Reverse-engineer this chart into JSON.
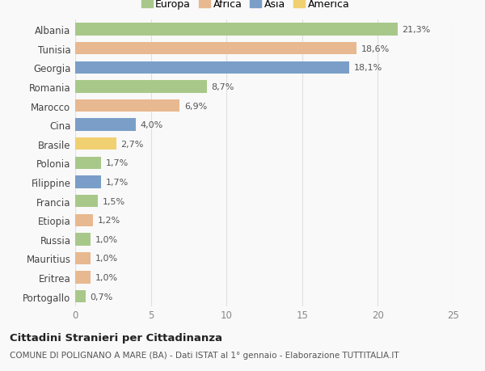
{
  "countries": [
    "Albania",
    "Tunisia",
    "Georgia",
    "Romania",
    "Marocco",
    "Cina",
    "Brasile",
    "Polonia",
    "Filippine",
    "Francia",
    "Etiopia",
    "Russia",
    "Mauritius",
    "Eritrea",
    "Portogallo"
  ],
  "values": [
    21.3,
    18.6,
    18.1,
    8.7,
    6.9,
    4.0,
    2.7,
    1.7,
    1.7,
    1.5,
    1.2,
    1.0,
    1.0,
    1.0,
    0.7
  ],
  "labels": [
    "21,3%",
    "18,6%",
    "18,1%",
    "8,7%",
    "6,9%",
    "4,0%",
    "2,7%",
    "1,7%",
    "1,7%",
    "1,5%",
    "1,2%",
    "1,0%",
    "1,0%",
    "1,0%",
    "0,7%"
  ],
  "continents": [
    "Europa",
    "Africa",
    "Asia",
    "Europa",
    "Africa",
    "Asia",
    "America",
    "Europa",
    "Asia",
    "Europa",
    "Africa",
    "Europa",
    "Africa",
    "Africa",
    "Europa"
  ],
  "colors": {
    "Europa": "#a8c88a",
    "Africa": "#e8b890",
    "Asia": "#7a9ec8",
    "America": "#f0d070"
  },
  "legend_order": [
    "Europa",
    "Africa",
    "Asia",
    "America"
  ],
  "title": "Cittadini Stranieri per Cittadinanza",
  "subtitle": "COMUNE DI POLIGNANO A MARE (BA) - Dati ISTAT al 1° gennaio - Elaborazione TUTTITALIA.IT",
  "xlim": [
    0,
    25
  ],
  "xticks": [
    0,
    5,
    10,
    15,
    20,
    25
  ],
  "background_color": "#f9f9f9",
  "grid_color": "#e0e0e0"
}
